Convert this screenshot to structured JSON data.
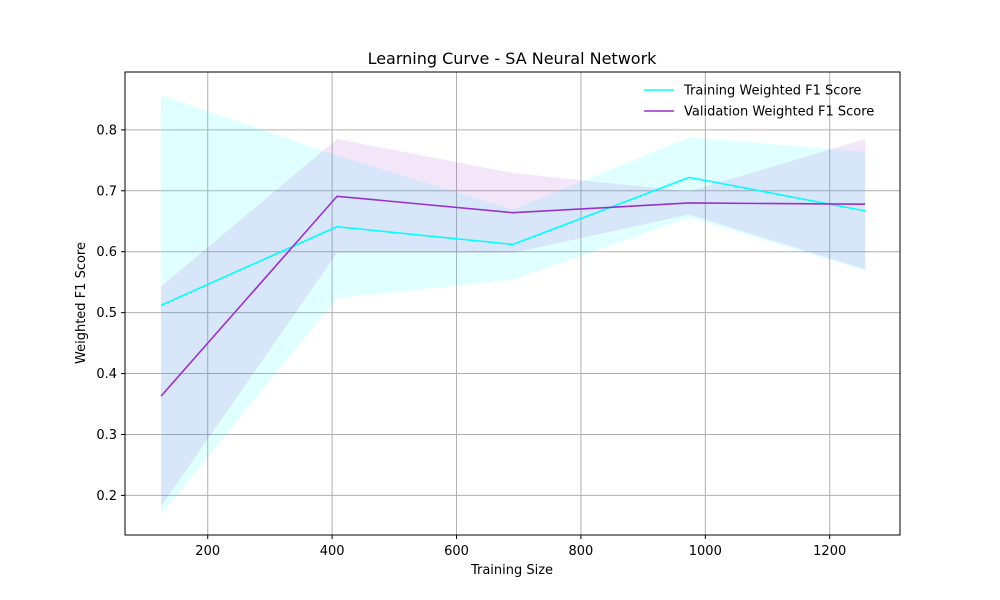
{
  "chart_data": {
    "type": "line",
    "title": "Learning Curve - SA Neural Network",
    "xlabel": "Training Size",
    "ylabel": "Weighted F1 Score",
    "xlim": [
      67,
      1313
    ],
    "ylim": [
      0.135,
      0.895
    ],
    "xticks": [
      200,
      400,
      600,
      800,
      1000,
      1200
    ],
    "yticks": [
      0.2,
      0.3,
      0.4,
      0.5,
      0.6,
      0.7,
      0.8
    ],
    "grid": true,
    "legend_position": "top-right",
    "x": [
      125,
      408,
      691,
      974,
      1257
    ],
    "series": [
      {
        "name": "Training Weighted F1 Score",
        "color": "#00ffff",
        "values": [
          0.512,
          0.641,
          0.612,
          0.722,
          0.667
        ],
        "band_lower": [
          0.168,
          0.524,
          0.554,
          0.656,
          0.569
        ],
        "band_upper": [
          0.857,
          0.758,
          0.669,
          0.788,
          0.764
        ]
      },
      {
        "name": "Validation Weighted F1 Score",
        "color": "#9932cc",
        "values": [
          0.363,
          0.691,
          0.664,
          0.68,
          0.678
        ],
        "band_lower": [
          0.182,
          0.598,
          0.598,
          0.661,
          0.571
        ],
        "band_upper": [
          0.543,
          0.785,
          0.729,
          0.699,
          0.785
        ]
      }
    ]
  }
}
